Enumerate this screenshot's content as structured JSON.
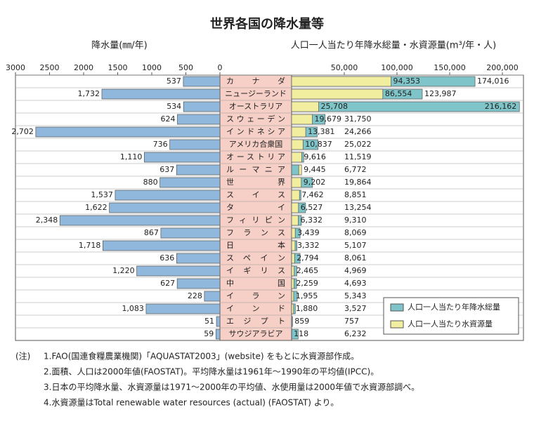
{
  "chart_data": {
    "type": "butterfly",
    "title": "世界各国の降水量等",
    "categories": [
      "カナダ",
      "ニュージーランド",
      "オーストラリア",
      "スウェーデン",
      "インドネシア",
      "アメリカ合衆国",
      "オーストリア",
      "ルーマニア",
      "世界",
      "スイス",
      "タイ",
      "フィリピン",
      "フランス",
      "日本",
      "スペイン",
      "イギリス",
      "中国",
      "イラン",
      "インド",
      "エジプト",
      "サウジアラビア"
    ],
    "left": {
      "axis_label": "降水量(㎜/年)",
      "xlim": [
        0,
        3000
      ],
      "xticks": [
        3000,
        2500,
        2000,
        1500,
        1000,
        500,
        0
      ],
      "color": "#8fb8dc",
      "values": [
        537,
        1732,
        534,
        624,
        2702,
        736,
        1110,
        637,
        880,
        1537,
        1622,
        2348,
        867,
        1718,
        636,
        1220,
        627,
        228,
        1083,
        51,
        59
      ],
      "value_labels": [
        "537",
        "1,732",
        "534",
        "624",
        "2,702",
        "736",
        "1,110",
        "637",
        "880",
        "1,537",
        "1,622",
        "2,348",
        "867",
        "1,718",
        "636",
        "1,220",
        "627",
        "228",
        "1,083",
        "51",
        "59"
      ]
    },
    "right": {
      "axis_label": "人口一人当たり年降水総量・水資源量(m³/年・人)",
      "xlim": [
        0,
        220000
      ],
      "xticks": [
        {
          "value": 50000,
          "label": "50,000"
        },
        {
          "value": 100000,
          "label": "100,000"
        },
        {
          "value": 150000,
          "label": "150,000"
        },
        {
          "value": 200000,
          "label": "200,000"
        }
      ],
      "series": [
        {
          "name": "人口一人当たり年降水総量",
          "color": "#7fc4c8",
          "values": [
            174016,
            123987,
            216162,
            31750,
            24266,
            25022,
            11519,
            6772,
            19864,
            8851,
            13254,
            9310,
            8069,
            5107,
            8061,
            4969,
            4693,
            5343,
            3527,
            757,
            6232
          ],
          "value_labels": [
            "174,016",
            "123,987",
            "216,162",
            "31,750",
            "24,266",
            "25,022",
            "11,519",
            "6,772",
            "19,864",
            "8,851",
            "13,254",
            "9,310",
            "8,069",
            "5,107",
            "8,061",
            "4,969",
            "4,693",
            "5,343",
            "3,527",
            "757",
            "6,232"
          ]
        },
        {
          "name": "人口一人当たり水資源量",
          "color": "#f2eea0",
          "values": [
            94353,
            86554,
            25708,
            19679,
            13381,
            10837,
            9616,
            9445,
            9202,
            7462,
            6527,
            6332,
            3439,
            3332,
            2794,
            2465,
            2259,
            1955,
            1880,
            859,
            118
          ],
          "value_labels": [
            "94,353",
            "86,554",
            "25,708",
            "19,679",
            "13,381",
            "10,837",
            "9,616",
            "9,445",
            "9,202",
            "7,462",
            "6,527",
            "6,332",
            "3,439",
            "3,332",
            "2,794",
            "2,465",
            "2,259",
            "1,955",
            "1,880",
            "859",
            "118"
          ]
        }
      ]
    },
    "legend": "lower right"
  },
  "notes": {
    "prefix": "(注)",
    "lines": [
      "1.FAO(国連食糧農業機関)「AQUASTAT2003」(website) をもとに水資源部作成。",
      "2.面積、人口は2000年値(FAOSTAT)。平均降水量は1961年～1990年の平均値(IPCC)。",
      "3.日本の平均降水量、水資源量は1971～2000年の平均値、水使用量は2000年値で水資源部調べ。",
      "4.水資源量はTotal renewable water resources (actual) (FAOSTAT) より。"
    ]
  }
}
